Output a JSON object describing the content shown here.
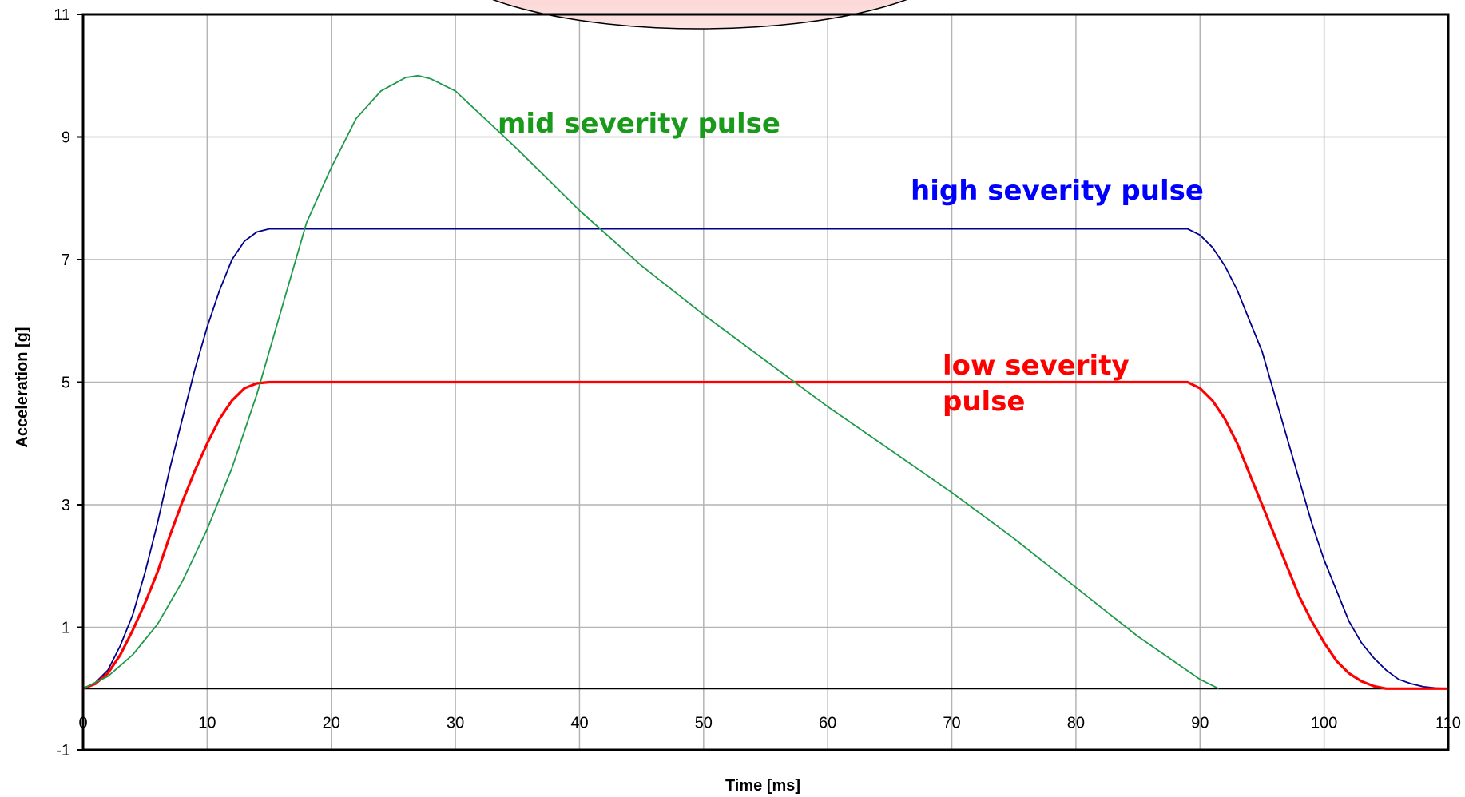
{
  "chart_data": {
    "type": "line",
    "xlabel": "Time [ms]",
    "ylabel": "Acceleration [g]",
    "xlim": [
      0,
      110
    ],
    "ylim": [
      -1,
      11
    ],
    "xticks": [
      0,
      10,
      20,
      30,
      40,
      50,
      60,
      70,
      80,
      90,
      100,
      110
    ],
    "yticks": [
      -1,
      1,
      3,
      5,
      7,
      9,
      11
    ],
    "grid": true,
    "series": [
      {
        "name": "high severity pulse",
        "color": "#00008b",
        "label_color": "#0000ff",
        "x": [
          0,
          1,
          2,
          3,
          4,
          5,
          6,
          7,
          8,
          9,
          10,
          11,
          12,
          13,
          14,
          15,
          20,
          30,
          40,
          50,
          60,
          70,
          80,
          89,
          90,
          91,
          92,
          93,
          94,
          95,
          96,
          97,
          98,
          99,
          100,
          101,
          102,
          103,
          104,
          105,
          106,
          107,
          108,
          109,
          110
        ],
        "y": [
          0,
          0.1,
          0.3,
          0.7,
          1.2,
          1.9,
          2.7,
          3.6,
          4.4,
          5.2,
          5.9,
          6.5,
          7.0,
          7.3,
          7.45,
          7.5,
          7.5,
          7.5,
          7.5,
          7.5,
          7.5,
          7.5,
          7.5,
          7.5,
          7.4,
          7.2,
          6.9,
          6.5,
          6.0,
          5.5,
          4.8,
          4.1,
          3.4,
          2.7,
          2.1,
          1.6,
          1.1,
          0.75,
          0.5,
          0.3,
          0.15,
          0.08,
          0.03,
          0.01,
          0
        ]
      },
      {
        "name": "low severity pulse",
        "color": "#ff0000",
        "label_color": "#ff0000",
        "x": [
          0,
          1,
          2,
          3,
          4,
          5,
          6,
          7,
          8,
          9,
          10,
          11,
          12,
          13,
          14,
          15,
          20,
          30,
          40,
          50,
          60,
          70,
          80,
          89,
          90,
          91,
          92,
          93,
          94,
          95,
          96,
          97,
          98,
          99,
          100,
          101,
          102,
          103,
          104,
          105,
          106,
          107,
          108,
          109,
          110
        ],
        "y": [
          0,
          0.08,
          0.25,
          0.55,
          0.95,
          1.4,
          1.9,
          2.5,
          3.05,
          3.55,
          4.0,
          4.4,
          4.7,
          4.9,
          4.98,
          5.0,
          5.0,
          5.0,
          5.0,
          5.0,
          5.0,
          5.0,
          5.0,
          5.0,
          4.9,
          4.7,
          4.4,
          4.0,
          3.5,
          3.0,
          2.5,
          2.0,
          1.5,
          1.1,
          0.75,
          0.45,
          0.25,
          0.12,
          0.04,
          0,
          0,
          0,
          0,
          0,
          0
        ]
      },
      {
        "name": "mid severity pulse",
        "color": "#1f9a4a",
        "label_color": "#1a9a1a",
        "x": [
          0,
          2,
          4,
          6,
          8,
          10,
          12,
          14,
          16,
          18,
          20,
          22,
          24,
          26,
          27,
          28,
          30,
          35,
          40,
          45,
          50,
          55,
          60,
          65,
          70,
          75,
          80,
          85,
          90,
          91.5
        ],
        "y": [
          0,
          0.2,
          0.55,
          1.05,
          1.75,
          2.6,
          3.6,
          4.8,
          6.2,
          7.6,
          8.5,
          9.3,
          9.75,
          9.97,
          10.0,
          9.95,
          9.75,
          8.8,
          7.8,
          6.9,
          6.1,
          5.35,
          4.6,
          3.9,
          3.2,
          2.45,
          1.65,
          0.85,
          0.15,
          0
        ]
      }
    ]
  }
}
